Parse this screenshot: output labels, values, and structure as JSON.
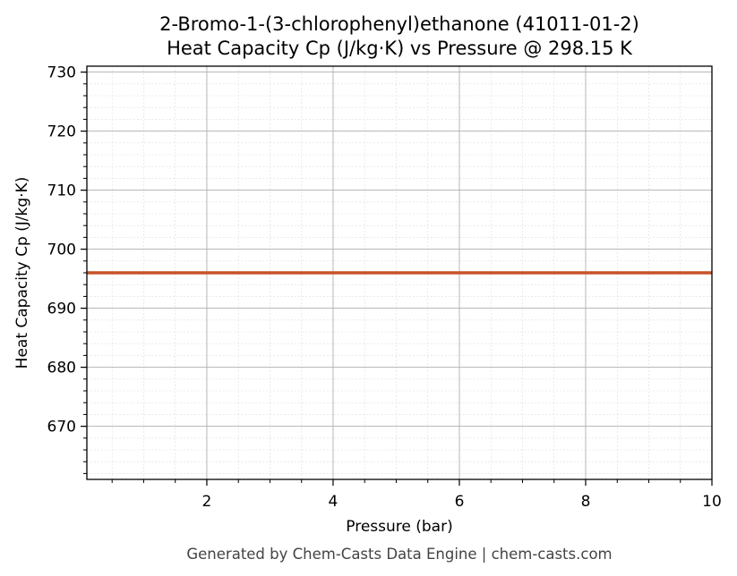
{
  "chart_data": {
    "type": "line",
    "title_line1": "2-Bromo-1-(3-chlorophenyl)ethanone (41011-01-2)",
    "title_line2": "Heat Capacity Cp (J/kg·K) vs Pressure @ 298.15 K",
    "xlabel": "Pressure (bar)",
    "ylabel": "Heat Capacity Cp (J/kg·K)",
    "xlim": [
      0.1,
      10
    ],
    "ylim": [
      661,
      731
    ],
    "xticks": [
      2,
      4,
      6,
      8,
      10
    ],
    "yticks": [
      670,
      680,
      690,
      700,
      710,
      720,
      730
    ],
    "x_minor_step": 0.5,
    "y_minor_step": 2,
    "grid": true,
    "series": [
      {
        "color": "#c8532a",
        "x": [
          0.1,
          10
        ],
        "y": [
          696,
          696
        ]
      }
    ]
  },
  "footer": "Generated by Chem-Casts Data Engine | chem-casts.com"
}
